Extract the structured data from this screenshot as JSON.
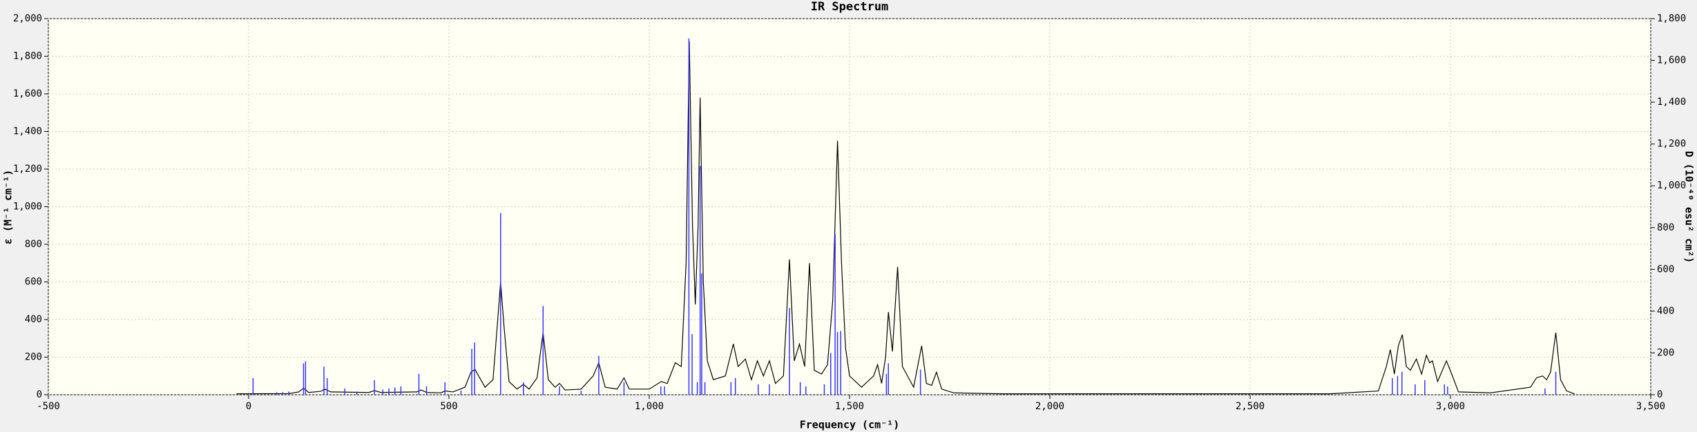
{
  "chart_data": {
    "type": "line",
    "title": "IR Spectrum",
    "x_label": "Frequency (cm⁻¹)",
    "y_label": "ε (M⁻¹ cm⁻¹)",
    "y2_label": "D (10⁻⁴⁰ esu² cm²)",
    "xlim": [
      -500,
      3500
    ],
    "xticks": [
      -500,
      0,
      500,
      {
        "value": 1000,
        "label": "1,000"
      },
      {
        "value": 1500,
        "label": "1,500"
      },
      {
        "value": 2000,
        "label": "2,000"
      },
      {
        "value": 2500,
        "label": "2,500"
      },
      {
        "value": 3000,
        "label": "3,000"
      },
      {
        "value": 3500,
        "label": "3,500"
      }
    ],
    "ylim": [
      0,
      2000
    ],
    "yticks": [
      0,
      200,
      400,
      600,
      800,
      {
        "value": 1000,
        "label": "1,000"
      },
      {
        "value": 1200,
        "label": "1,200"
      },
      {
        "value": 1400,
        "label": "1,400"
      },
      {
        "value": 1600,
        "label": "1,600"
      },
      {
        "value": 1800,
        "label": "1,800"
      },
      {
        "value": 2000,
        "label": "2,000"
      }
    ],
    "y2lim": [
      0,
      1800
    ],
    "y2ticks": [
      0,
      200,
      400,
      600,
      800,
      {
        "value": 1000,
        "label": "1,000"
      },
      {
        "value": 1200,
        "label": "1,200"
      },
      {
        "value": 1400,
        "label": "1,400"
      },
      {
        "value": 1600,
        "label": "1,600"
      },
      {
        "value": 1800,
        "label": "1,800"
      }
    ],
    "grid": true,
    "series": [
      {
        "type": "line",
        "color": "#000000",
        "x": [
          -30,
          100,
          125,
          137,
          150,
          180,
          190,
          205,
          300,
          314,
          330,
          420,
          430,
          445,
          480,
          490,
          510,
          540,
          555,
          565,
          590,
          610,
          620,
          629,
          638,
          650,
          670,
          686,
          700,
          720,
          735,
          748,
          765,
          776,
          790,
          830,
          860,
          874,
          890,
          920,
          937,
          950,
          1000,
          1030,
          1045,
          1065,
          1080,
          1092,
          1100,
          1108,
          1115,
          1122,
          1127,
          1135,
          1145,
          1160,
          1190,
          1210,
          1222,
          1240,
          1255,
          1270,
          1285,
          1300,
          1315,
          1335,
          1350,
          1362,
          1375,
          1388,
          1400,
          1412,
          1430,
          1445,
          1458,
          1470,
          1480,
          1490,
          1500,
          1530,
          1560,
          1570,
          1580,
          1590,
          1597,
          1607,
          1620,
          1632,
          1660,
          1680,
          1692,
          1705,
          1717,
          1730,
          1760,
          1880,
          2700,
          2820,
          2840,
          2850,
          2860,
          2870,
          2880,
          2890,
          2900,
          2915,
          2928,
          2940,
          2948,
          2955,
          2968,
          2990,
          3005,
          3020,
          3100,
          3200,
          3215,
          3230,
          3240,
          3250,
          3263,
          3275,
          3290,
          3310
        ],
        "values": [
          5,
          6,
          15,
          35,
          12,
          18,
          30,
          15,
          12,
          22,
          12,
          15,
          25,
          12,
          10,
          20,
          15,
          40,
          120,
          135,
          40,
          80,
          350,
          600,
          350,
          70,
          30,
          55,
          30,
          90,
          330,
          80,
          40,
          60,
          25,
          30,
          100,
          170,
          40,
          30,
          90,
          30,
          30,
          70,
          60,
          170,
          150,
          700,
          1880,
          900,
          480,
          900,
          1580,
          600,
          180,
          80,
          100,
          270,
          150,
          190,
          80,
          180,
          100,
          180,
          60,
          100,
          720,
          180,
          270,
          150,
          700,
          130,
          110,
          160,
          500,
          1350,
          700,
          250,
          100,
          40,
          100,
          160,
          60,
          200,
          440,
          230,
          680,
          150,
          40,
          260,
          60,
          50,
          120,
          30,
          10,
          5,
          5,
          20,
          150,
          240,
          110,
          260,
          320,
          150,
          130,
          190,
          110,
          210,
          170,
          180,
          70,
          180,
          100,
          15,
          10,
          40,
          90,
          100,
          80,
          120,
          330,
          80,
          20,
          5
        ]
      },
      {
        "type": "stick",
        "axis": "y2",
        "color": "#3333ff",
        "x": [
          11,
          70,
          85,
          100,
          137,
          142,
          188,
          196,
          240,
          270,
          314,
          335,
          350,
          365,
          380,
          425,
          444,
          490,
          530,
          557,
          564,
          629,
          686,
          735,
          776,
          830,
          874,
          937,
          1029,
          1038,
          1099,
          1107,
          1120,
          1127,
          1131,
          1139,
          1204,
          1215,
          1272,
          1300,
          1350,
          1377,
          1391,
          1437,
          1453,
          1464,
          1470,
          1478,
          1592,
          1597,
          1677,
          2855,
          2868,
          2879,
          2912,
          2936,
          2985,
          2993,
          3236,
          3263
        ],
        "values": [
          80,
          12,
          12,
          15,
          150,
          160,
          135,
          80,
          30,
          15,
          70,
          25,
          30,
          35,
          40,
          100,
          40,
          60,
          20,
          220,
          250,
          870,
          60,
          425,
          40,
          20,
          186,
          60,
          40,
          40,
          1705,
          290,
          60,
          1095,
          580,
          60,
          60,
          80,
          50,
          50,
          415,
          60,
          40,
          50,
          200,
          770,
          300,
          305,
          100,
          150,
          120,
          80,
          90,
          110,
          50,
          70,
          50,
          40,
          30,
          110
        ]
      }
    ]
  }
}
